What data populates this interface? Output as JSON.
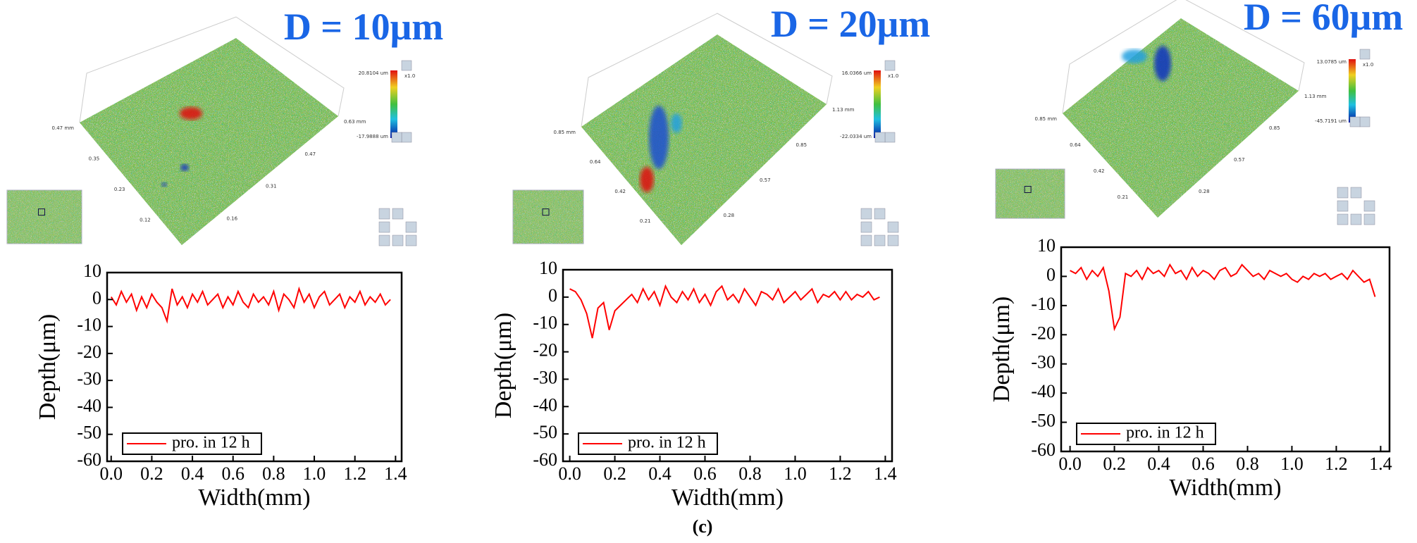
{
  "chart_data": [
    {
      "type": "line",
      "xlabel": "Width(mm)",
      "ylabel": "Depth(μm)",
      "x": [
        0,
        0.025,
        0.05,
        0.075,
        0.1,
        0.125,
        0.15,
        0.175,
        0.2,
        0.225,
        0.25,
        0.275,
        0.3,
        0.325,
        0.35,
        0.375,
        0.4,
        0.425,
        0.45,
        0.475,
        0.5,
        0.525,
        0.55,
        0.575,
        0.6,
        0.625,
        0.65,
        0.675,
        0.7,
        0.725,
        0.75,
        0.775,
        0.8,
        0.825,
        0.85,
        0.875,
        0.9,
        0.925,
        0.95,
        0.975,
        1,
        1.025,
        1.05,
        1.075,
        1.1,
        1.125,
        1.15,
        1.175,
        1.2,
        1.225,
        1.25,
        1.275,
        1.3,
        1.325,
        1.35,
        1.375
      ],
      "series": [
        {
          "name": "pro. in 12 h",
          "color": "#ff0000",
          "values": [
            1,
            -2,
            3,
            -1,
            2,
            -4,
            1,
            -3,
            2,
            -1,
            -3,
            -8,
            4,
            -2,
            1,
            -3,
            2,
            -1,
            3,
            -2,
            0,
            2,
            -3,
            1,
            -2,
            3,
            -1,
            -3,
            2,
            -1,
            1,
            -2,
            3,
            -4,
            2,
            0,
            -3,
            4,
            -1,
            2,
            -3,
            1,
            3,
            -2,
            0,
            2,
            -3,
            1,
            -1,
            3,
            -2,
            1,
            -1,
            2,
            -2,
            0
          ]
        }
      ],
      "xlim": [
        -0.02,
        1.43
      ],
      "ylim": [
        -60,
        10
      ],
      "xticks": [
        {
          "value": 0,
          "label": "0.0"
        },
        {
          "value": 0.2,
          "label": "0.2"
        },
        {
          "value": 0.4,
          "label": "0.4"
        },
        {
          "value": 0.6,
          "label": "0.6"
        },
        {
          "value": 0.8,
          "label": "0.8"
        },
        {
          "value": 1,
          "label": "1.0"
        },
        {
          "value": 1.2,
          "label": "1.2"
        },
        {
          "value": 1.4,
          "label": "1.4"
        }
      ],
      "yticks": [
        -60,
        -50,
        -40,
        -30,
        -20,
        -10,
        0,
        10
      ],
      "legend": "lower left"
    },
    {
      "type": "line",
      "xlabel": "Width(mm)",
      "ylabel": "Depth(μm)",
      "x": [
        0,
        0.025,
        0.05,
        0.075,
        0.1,
        0.125,
        0.15,
        0.175,
        0.2,
        0.225,
        0.25,
        0.275,
        0.3,
        0.325,
        0.35,
        0.375,
        0.4,
        0.425,
        0.45,
        0.475,
        0.5,
        0.525,
        0.55,
        0.575,
        0.6,
        0.625,
        0.65,
        0.675,
        0.7,
        0.725,
        0.75,
        0.775,
        0.8,
        0.825,
        0.85,
        0.875,
        0.9,
        0.925,
        0.95,
        0.975,
        1,
        1.025,
        1.05,
        1.075,
        1.1,
        1.125,
        1.15,
        1.175,
        1.2,
        1.225,
        1.25,
        1.275,
        1.3,
        1.325,
        1.35,
        1.375
      ],
      "series": [
        {
          "name": "pro. in 12 h",
          "color": "#ff0000",
          "values": [
            3,
            2,
            -1,
            -6,
            -15,
            -4,
            -2,
            -12,
            -5,
            -3,
            -1,
            1,
            -2,
            3,
            -1,
            2,
            -3,
            4,
            0,
            -2,
            2,
            -1,
            3,
            -2,
            1,
            -3,
            2,
            4,
            -1,
            1,
            -2,
            3,
            0,
            -3,
            2,
            1,
            -1,
            3,
            -2,
            0,
            2,
            -1,
            1,
            3,
            -2,
            1,
            0,
            2,
            -1,
            2,
            -1,
            1,
            0,
            2,
            -1,
            0
          ]
        }
      ],
      "xlim": [
        -0.03,
        1.43
      ],
      "ylim": [
        -60,
        10
      ],
      "xticks": [
        {
          "value": 0,
          "label": "0.0"
        },
        {
          "value": 0.2,
          "label": "0.2"
        },
        {
          "value": 0.4,
          "label": "0.4"
        },
        {
          "value": 0.6,
          "label": "0.6"
        },
        {
          "value": 0.8,
          "label": "0.8"
        },
        {
          "value": 1,
          "label": "1.0"
        },
        {
          "value": 1.2,
          "label": "1.2"
        },
        {
          "value": 1.4,
          "label": "1.4"
        }
      ],
      "yticks": [
        -60,
        -50,
        -40,
        -30,
        -20,
        -10,
        0,
        10
      ],
      "legend": "lower left"
    },
    {
      "type": "line",
      "xlabel": "Width(mm)",
      "ylabel": "Depth(μm)",
      "x": [
        0,
        0.025,
        0.05,
        0.075,
        0.1,
        0.125,
        0.15,
        0.175,
        0.2,
        0.225,
        0.25,
        0.275,
        0.3,
        0.325,
        0.35,
        0.375,
        0.4,
        0.425,
        0.45,
        0.475,
        0.5,
        0.525,
        0.55,
        0.575,
        0.6,
        0.625,
        0.65,
        0.675,
        0.7,
        0.725,
        0.75,
        0.775,
        0.8,
        0.825,
        0.85,
        0.875,
        0.9,
        0.925,
        0.95,
        0.975,
        1,
        1.025,
        1.05,
        1.075,
        1.1,
        1.125,
        1.15,
        1.175,
        1.2,
        1.225,
        1.25,
        1.275,
        1.3,
        1.325,
        1.35,
        1.375
      ],
      "series": [
        {
          "name": "pro. in 12 h",
          "color": "#ff0000",
          "values": [
            2,
            1,
            3,
            -1,
            2,
            0,
            3,
            -5,
            -18,
            -14,
            1,
            0,
            2,
            -1,
            3,
            1,
            2,
            0,
            4,
            1,
            2,
            -1,
            3,
            0,
            2,
            1,
            -1,
            2,
            3,
            0,
            1,
            4,
            2,
            0,
            1,
            -1,
            2,
            1,
            0,
            1,
            -1,
            -2,
            0,
            -1,
            1,
            0,
            1,
            -1,
            0,
            1,
            -1,
            2,
            0,
            -2,
            -1,
            -7
          ]
        }
      ],
      "xlim": [
        -0.04,
        1.44
      ],
      "ylim": [
        -60,
        10
      ],
      "xticks": [
        {
          "value": 0,
          "label": "0.0"
        },
        {
          "value": 0.2,
          "label": "0.2"
        },
        {
          "value": 0.4,
          "label": "0.4"
        },
        {
          "value": 0.6,
          "label": "0.6"
        },
        {
          "value": 0.8,
          "label": "0.8"
        },
        {
          "value": 1,
          "label": "1.0"
        },
        {
          "value": 1.2,
          "label": "1.2"
        },
        {
          "value": 1.4,
          "label": "1.4"
        }
      ],
      "yticks": [
        -60,
        -50,
        -40,
        -30,
        -20,
        -10,
        0,
        10
      ],
      "legend": "lower left"
    }
  ],
  "panels": [
    {
      "title": "D = 10μm",
      "surface": {
        "colorbar": [
          "20.8104 um",
          "-17.9888 um"
        ],
        "zoom": "x1.0",
        "left_ticks": [
          "0.47 mm",
          "0.35",
          "0.23",
          "0.12"
        ],
        "right_ticks": [
          "0.63 mm",
          "0.47",
          "0.31",
          "0.16"
        ]
      }
    },
    {
      "title": "D = 20μm",
      "surface": {
        "colorbar": [
          "16.0366 um",
          "-22.0334 um"
        ],
        "zoom": "x1.0",
        "left_ticks": [
          "0.85 mm",
          "0.64",
          "0.42",
          "0.21"
        ],
        "right_ticks": [
          "1.13 mm",
          "0.85",
          "0.57",
          "0.28"
        ]
      }
    },
    {
      "title": "D = 60μm",
      "surface": {
        "colorbar": [
          "13.0785 um",
          "-45.7191 um"
        ],
        "zoom": "x1.0",
        "left_ticks": [
          "0.85 mm",
          "0.64",
          "0.42",
          "0.21"
        ],
        "right_ticks": [
          "1.13 mm",
          "0.85",
          "0.57",
          "0.28"
        ]
      }
    }
  ],
  "caption": "(c)"
}
